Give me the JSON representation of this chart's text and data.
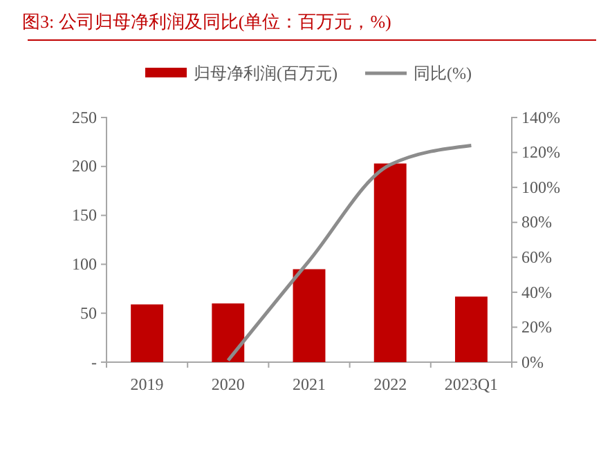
{
  "chart_data": {
    "type": "bar",
    "title": "图3:   公司归母净利润及同比(单位：百万元，%)",
    "categories": [
      "2019",
      "2020",
      "2021",
      "2022",
      "2023Q1"
    ],
    "series": [
      {
        "name": "归母净利润(百万元)",
        "color": "#c00000",
        "values": [
          59,
          60,
          95,
          203,
          67
        ]
      },
      {
        "name": "同比(%)",
        "type": "line",
        "axis": "y2",
        "color": "#8c8c8c",
        "values": [
          null,
          1,
          58,
          113,
          124
        ]
      }
    ],
    "ylim": [
      0,
      250
    ],
    "yticks": [
      {
        "value": 0,
        "label": "-"
      },
      50,
      100,
      150,
      200,
      250
    ],
    "y2lim": [
      0,
      140
    ],
    "y2ticks": [
      {
        "value": 0,
        "label": "0%"
      },
      {
        "value": 20,
        "label": "20%"
      },
      {
        "value": 40,
        "label": "40%"
      },
      {
        "value": 60,
        "label": "60%"
      },
      {
        "value": 80,
        "label": "80%"
      },
      {
        "value": 100,
        "label": "100%"
      },
      {
        "value": 120,
        "label": "120%"
      },
      {
        "value": 140,
        "label": "140%"
      }
    ],
    "legend": "top",
    "grid": false,
    "marker": "none",
    "line_style": "solid"
  }
}
